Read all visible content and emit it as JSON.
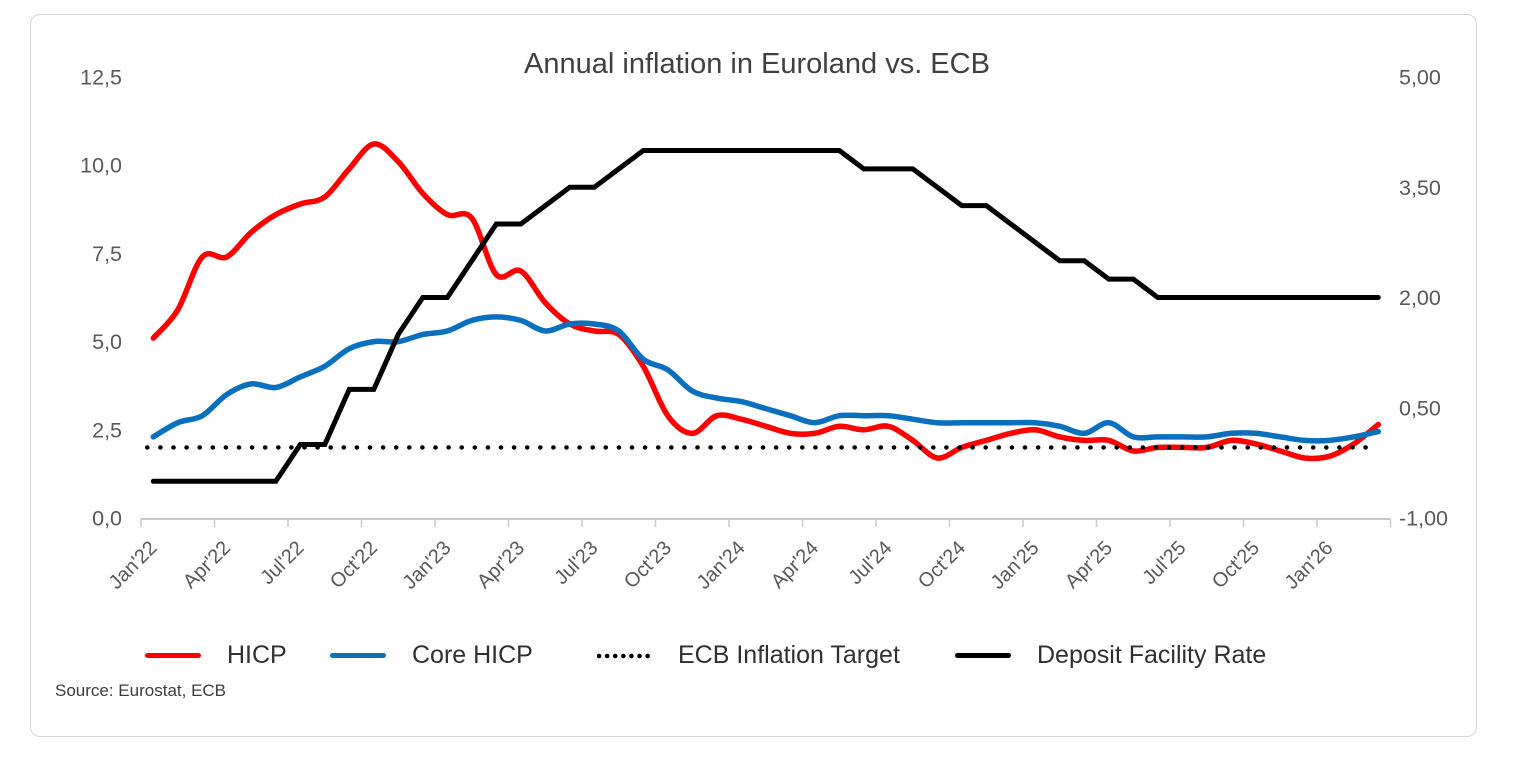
{
  "chart_data": {
    "type": "line",
    "title": "Annual inflation in Euroland vs. ECB",
    "source_note": "Source: Eurostat, ECB",
    "frequency": "monthly",
    "x_range": "Jan 2022 - Mar 2026",
    "x_tick_labels": [
      "Jan'22",
      "Apr'22",
      "Jul'22",
      "Oct'22",
      "Jan'23",
      "Apr'23",
      "Jul'23",
      "Oct'23",
      "Jan'24",
      "Apr'24",
      "Jul'24",
      "Oct'24",
      "Jan'25",
      "Apr'25",
      "Jul'25",
      "Oct'25",
      "Jan'26"
    ],
    "left_axis": {
      "min": 0,
      "max": 12.5,
      "ticks": [
        {
          "label": "12,5",
          "value": 12.5
        },
        {
          "label": "10,0",
          "value": 10
        },
        {
          "label": "7,5",
          "value": 7.5
        },
        {
          "label": "5,0",
          "value": 5
        },
        {
          "label": "2,5",
          "value": 2.5
        },
        {
          "label": "0,0",
          "value": 0
        }
      ]
    },
    "right_axis": {
      "min": -1,
      "max": 5,
      "ticks": [
        {
          "label": "5,00",
          "value": 5
        },
        {
          "label": "3,50",
          "value": 3.5
        },
        {
          "label": "2,00",
          "value": 2
        },
        {
          "label": "0,50",
          "value": 0.5
        },
        {
          "label": "-1,00",
          "value": -1
        }
      ]
    },
    "series": [
      {
        "name": "HICP",
        "axis": "left",
        "color": "#fe0000",
        "style": "solid",
        "smooth": true,
        "width": 5.5,
        "values": [
          5.1,
          5.9,
          7.4,
          7.4,
          8.1,
          8.6,
          8.9,
          9.1,
          9.9,
          10.6,
          10.1,
          9.2,
          8.6,
          8.5,
          6.9,
          7.0,
          6.1,
          5.5,
          5.3,
          5.2,
          4.3,
          2.9,
          2.4,
          2.9,
          2.8,
          2.6,
          2.4,
          2.4,
          2.6,
          2.5,
          2.6,
          2.2,
          1.7,
          2.0,
          2.2,
          2.4,
          2.5,
          2.3,
          2.2,
          2.2,
          1.9,
          2.0,
          2.0,
          2.0,
          2.2,
          2.1,
          1.9,
          1.7,
          1.75,
          2.1,
          2.65
        ]
      },
      {
        "name": "Core HICP",
        "axis": "left",
        "color": "#0a70be",
        "style": "solid",
        "smooth": true,
        "width": 5.5,
        "values": [
          2.3,
          2.7,
          2.9,
          3.5,
          3.8,
          3.7,
          4.0,
          4.3,
          4.8,
          5.0,
          5.0,
          5.2,
          5.3,
          5.6,
          5.7,
          5.6,
          5.3,
          5.5,
          5.5,
          5.3,
          4.5,
          4.2,
          3.6,
          3.4,
          3.3,
          3.1,
          2.9,
          2.7,
          2.9,
          2.9,
          2.9,
          2.8,
          2.7,
          2.7,
          2.7,
          2.7,
          2.7,
          2.6,
          2.4,
          2.7,
          2.3,
          2.3,
          2.3,
          2.3,
          2.4,
          2.4,
          2.3,
          2.2,
          2.2,
          2.3,
          2.45
        ]
      },
      {
        "name": "ECB Inflation Target",
        "axis": "left",
        "color": "#000000",
        "style": "dotted",
        "smooth": false,
        "width": 4.5,
        "constant": 2.0
      },
      {
        "name": "Deposit Facility Rate",
        "axis": "right",
        "color": "#000000",
        "style": "solid",
        "smooth": false,
        "width": 5,
        "values": [
          -0.5,
          -0.5,
          -0.5,
          -0.5,
          -0.5,
          -0.5,
          0.0,
          0.0,
          0.75,
          0.75,
          1.5,
          2.0,
          2.0,
          2.5,
          3.0,
          3.0,
          3.25,
          3.5,
          3.5,
          3.75,
          4.0,
          4.0,
          4.0,
          4.0,
          4.0,
          4.0,
          4.0,
          4.0,
          4.0,
          3.75,
          3.75,
          3.75,
          3.5,
          3.25,
          3.25,
          3.0,
          2.75,
          2.5,
          2.5,
          2.25,
          2.25,
          2.0,
          2.0,
          2.0,
          2.0,
          2.0,
          2.0,
          2.0,
          2.0,
          2.0,
          2.0
        ]
      }
    ],
    "legend": [
      {
        "label": "HICP",
        "color": "#fe0000",
        "style": "solid"
      },
      {
        "label": "Core HICP",
        "color": "#0a70be",
        "style": "solid"
      },
      {
        "label": "ECB Inflation Target",
        "color": "#000000",
        "style": "dotted"
      },
      {
        "label": "Deposit Facility Rate",
        "color": "#000000",
        "style": "solid"
      }
    ]
  }
}
